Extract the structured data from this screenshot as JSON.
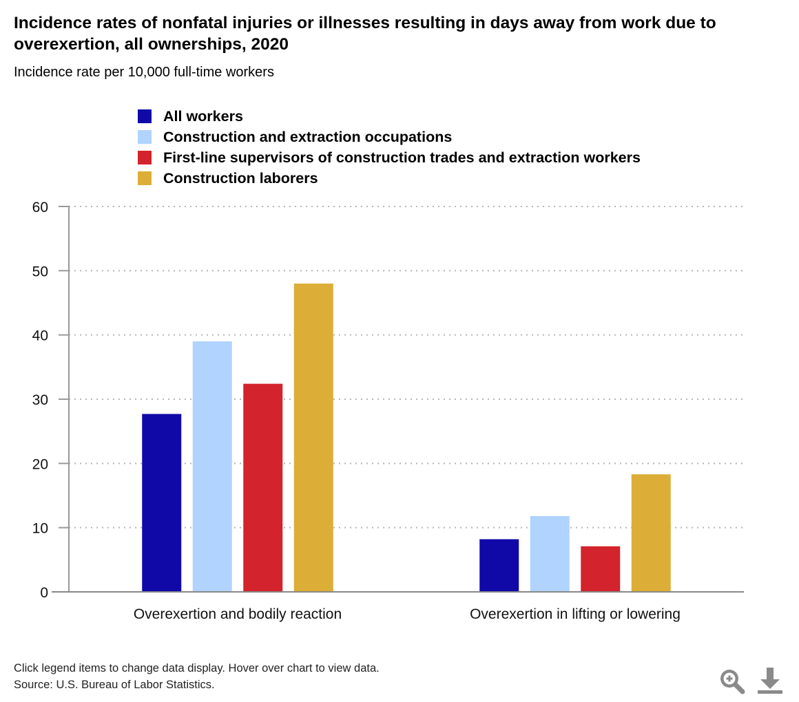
{
  "chart_data": {
    "type": "bar",
    "title": "Incidence rates of nonfatal injuries or illnesses resulting in days away from work due to overexertion, all ownerships, 2020",
    "subtitle": "Incidence rate per 10,000 full-time workers",
    "categories": [
      "Overexertion and bodily reaction",
      "Overexertion in lifting or lowering"
    ],
    "series": [
      {
        "name": "All workers",
        "color": "#1009a8",
        "values": [
          27.7,
          8.2
        ]
      },
      {
        "name": "Construction and extraction occupations",
        "color": "#b0d3ff",
        "values": [
          39.0,
          11.8
        ]
      },
      {
        "name": "First-line supervisors of construction trades and extraction workers",
        "color": "#d3232c",
        "values": [
          32.4,
          7.1
        ]
      },
      {
        "name": "Construction laborers",
        "color": "#dcae37",
        "values": [
          48.0,
          18.3
        ]
      }
    ],
    "ylim": [
      0,
      60
    ],
    "yticks": [
      0,
      10,
      20,
      30,
      40,
      50,
      60
    ],
    "grid": true,
    "legend_position": "top"
  },
  "footer": {
    "line1": "Click legend items to change data display. Hover over chart to view data.",
    "line2": "Source: U.S. Bureau of Labor Statistics."
  },
  "icons": {
    "zoom": "zoom-in-icon",
    "download": "download-icon"
  }
}
